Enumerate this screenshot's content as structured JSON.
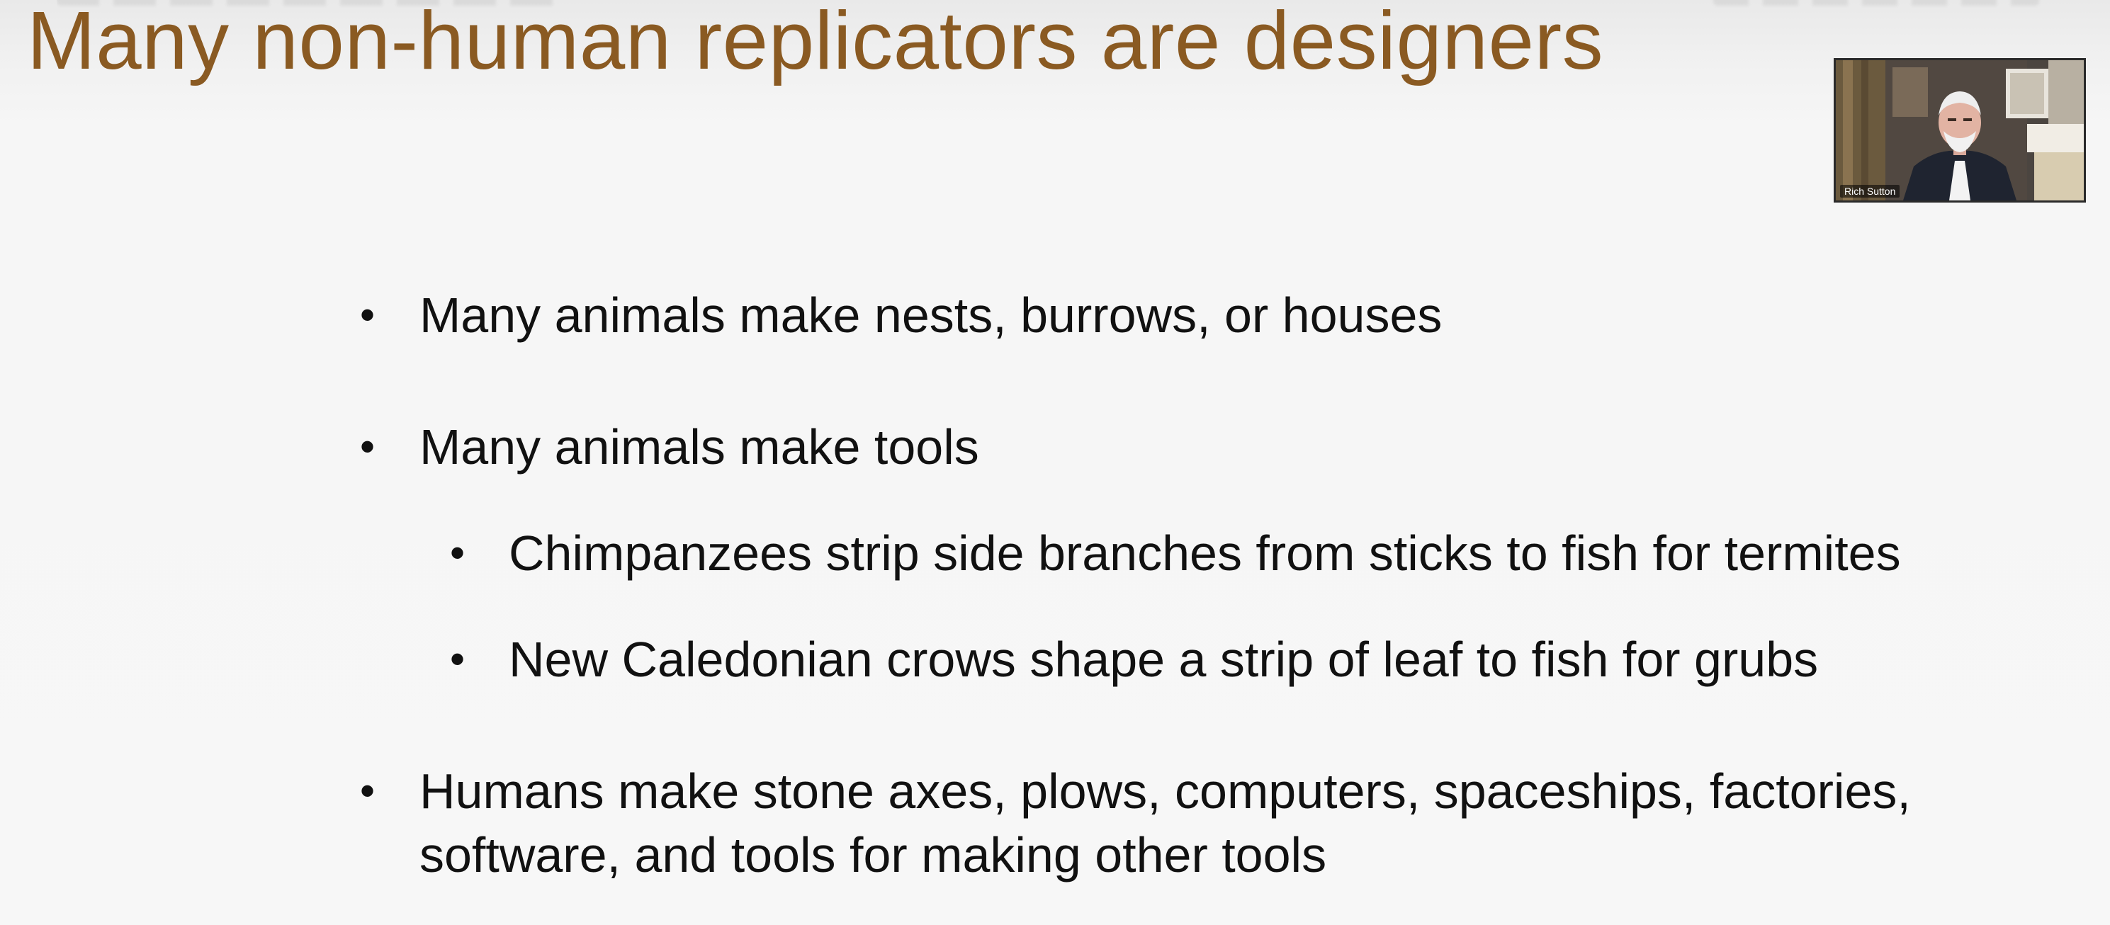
{
  "slide": {
    "title": "Many non-human replicators are designers",
    "bullets": [
      {
        "id": "b1",
        "level": 1,
        "text": "Many animals make nests, burrows, or houses"
      },
      {
        "id": "b2",
        "level": 1,
        "text": "Many animals make tools"
      },
      {
        "id": "b2a",
        "level": 2,
        "text": "Chimpanzees strip side branches from sticks to fish for termites"
      },
      {
        "id": "b2b",
        "level": 2,
        "text": "New Caledonian crows shape a strip of leaf to fish for grubs"
      },
      {
        "id": "b3",
        "level": 1,
        "text": "Humans make stone axes, plows, computers, spaceships, factories, software, and tools for making other tools"
      }
    ],
    "bullet_glyph": "•"
  },
  "webcam": {
    "participant_name": "Rich Sutton"
  },
  "colors": {
    "title": "#8a5a22",
    "body_text": "#111111",
    "background": "#f6f6f6"
  }
}
